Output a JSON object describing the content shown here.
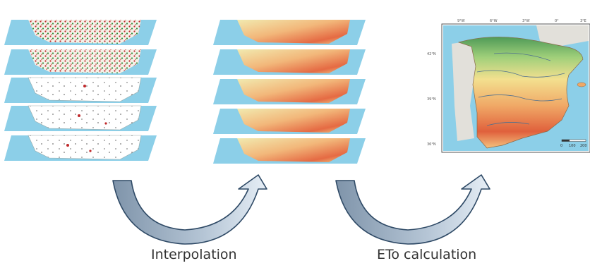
{
  "labels": {
    "step1": "Interpolation",
    "step2": "ETo calculation"
  },
  "final_map": {
    "lon_ticks": [
      "9°W",
      "6°W",
      "3°W",
      "0°",
      "3°E"
    ],
    "lat_ticks": [
      "42°N",
      "39°N",
      "36°N"
    ],
    "scale_ticks": [
      "0",
      "100",
      "200"
    ]
  },
  "colors": {
    "sea": "#8ccfe8",
    "arrow_fill": "#a9b9c9",
    "arrow_stroke": "#2f4a66",
    "arrow_light": "#dce8f3"
  }
}
